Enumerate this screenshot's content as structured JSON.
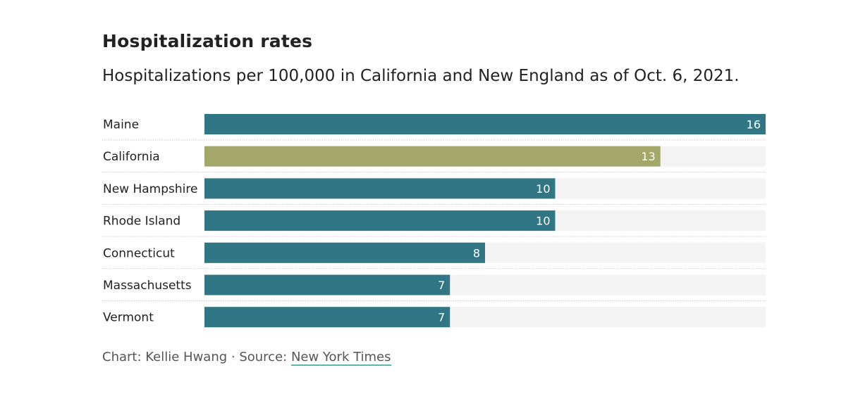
{
  "chart_data": {
    "type": "bar",
    "orientation": "horizontal",
    "title": "Hospitalization rates",
    "subtitle": "Hospitalizations per 100,000 in California and New England as of Oct. 6, 2021.",
    "categories": [
      "Maine",
      "California",
      "New Hampshire",
      "Rhode Island",
      "Connecticut",
      "Massachusetts",
      "Vermont"
    ],
    "values": [
      16,
      13,
      10,
      10,
      8,
      7,
      7
    ],
    "highlight": "California",
    "xlim": [
      0,
      16
    ],
    "xlabel": "",
    "ylabel": "",
    "grid": false,
    "colors": {
      "default": "#317684",
      "highlight": "#a3a86a",
      "track": "#f3f3f3",
      "label": "#ffffff"
    }
  },
  "footer": {
    "credit": "Chart: Kellie Hwang · Source: ",
    "source_link": "New York Times"
  }
}
